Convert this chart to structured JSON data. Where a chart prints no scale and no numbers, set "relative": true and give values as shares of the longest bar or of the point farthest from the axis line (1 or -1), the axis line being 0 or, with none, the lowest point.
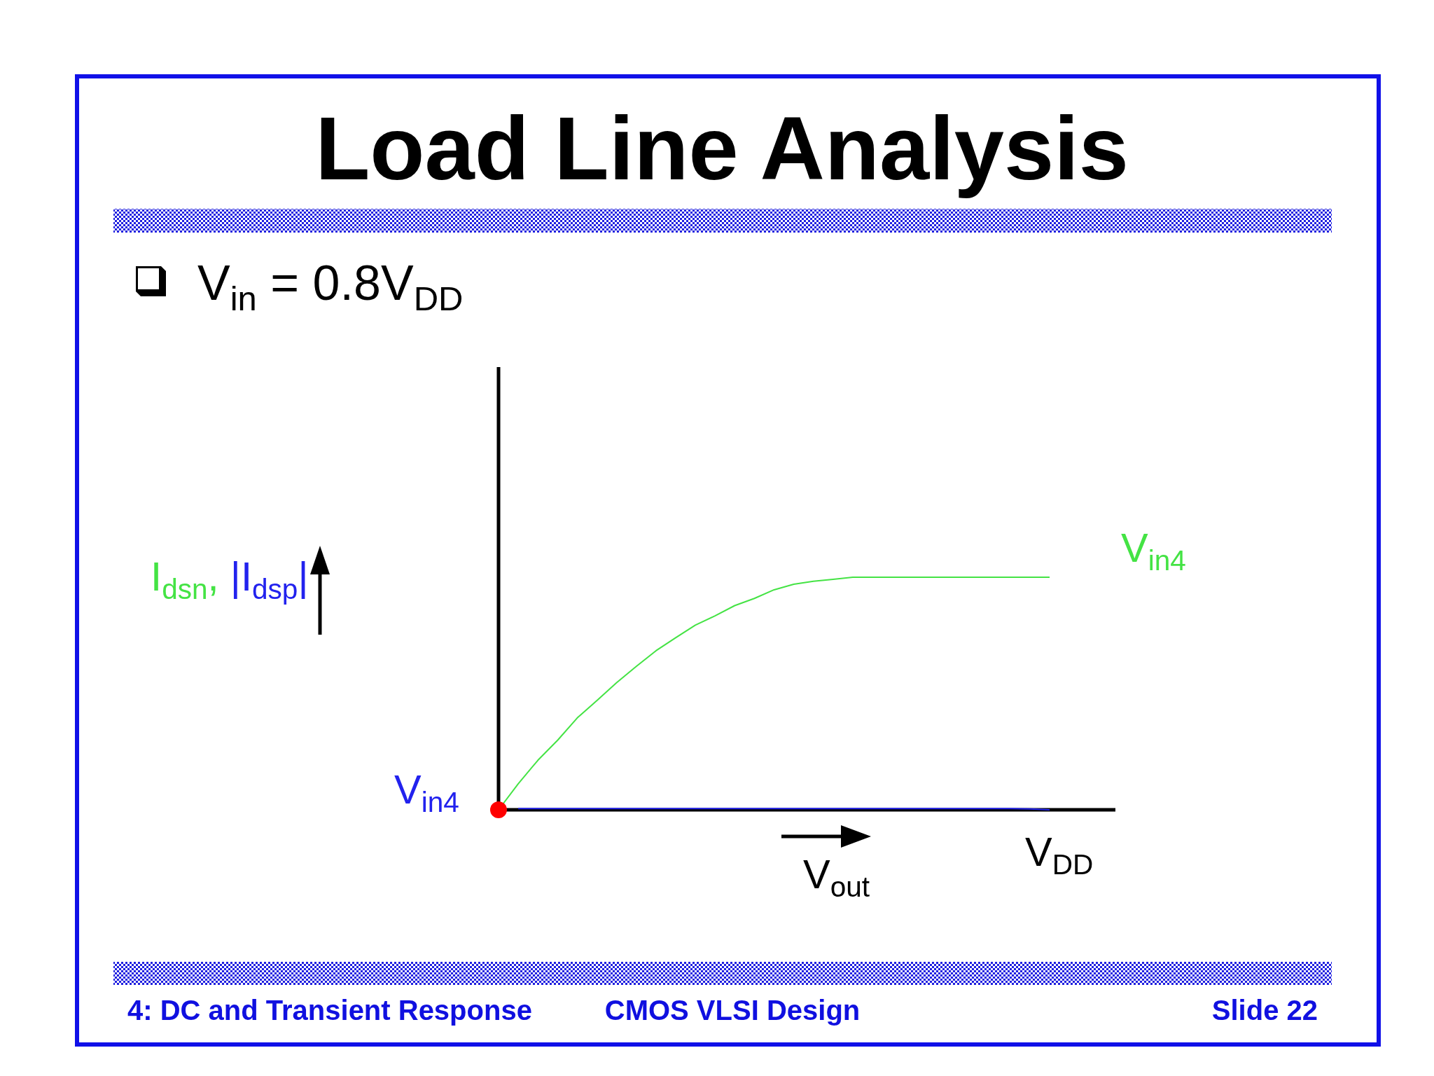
{
  "chart_data": {
    "type": "line",
    "title": "Load Line Analysis",
    "subtitle": "V$_{in}$ = 0.8V$_{DD}$",
    "xlabel": "V$_{out}$",
    "ylabel": "I$_{dsn}$, |I$_{dsp}$|",
    "categories": [
      null,
      null,
      null,
      null,
      null,
      null,
      null,
      null,
      null,
      null,
      null,
      null,
      null,
      null,
      null,
      null,
      null,
      null,
      null,
      null,
      null,
      null,
      null,
      null,
      null,
      null,
      null,
      null,
      null
    ],
    "relative": true,
    "series": [
      {
        "name": "V$_{in4}$",
        "color": "#44e344",
        "values": [
          0,
          0.112,
          0.213,
          0.299,
          0.395,
          0.47,
          0.547,
          0.617,
          0.684,
          0.74,
          0.794,
          0.834,
          0.878,
          0.909,
          0.946,
          0.97,
          0.983,
          0.991,
          1,
          1,
          1,
          1,
          1,
          1,
          1,
          1,
          1,
          1,
          1
        ]
      },
      {
        "name": "V$_{in4}$",
        "color": "#2222ee",
        "values": [
          null,
          0.005,
          0.005,
          0.005,
          0.005,
          0.005,
          0.005,
          0.005,
          0.005,
          0.005,
          0.005,
          0.005,
          0.005,
          0.005,
          0.005,
          0.005,
          0.005,
          0.005,
          0.005,
          0.005,
          0.005,
          0.005,
          0.005,
          0.005,
          0.005,
          0.005,
          0.005,
          0.004,
          0
        ]
      }
    ],
    "annotations": [
      "V$_{DD}$",
      "4: DC and Transient Response",
      "CMOS VLSI Design",
      "Slide 22"
    ]
  }
}
